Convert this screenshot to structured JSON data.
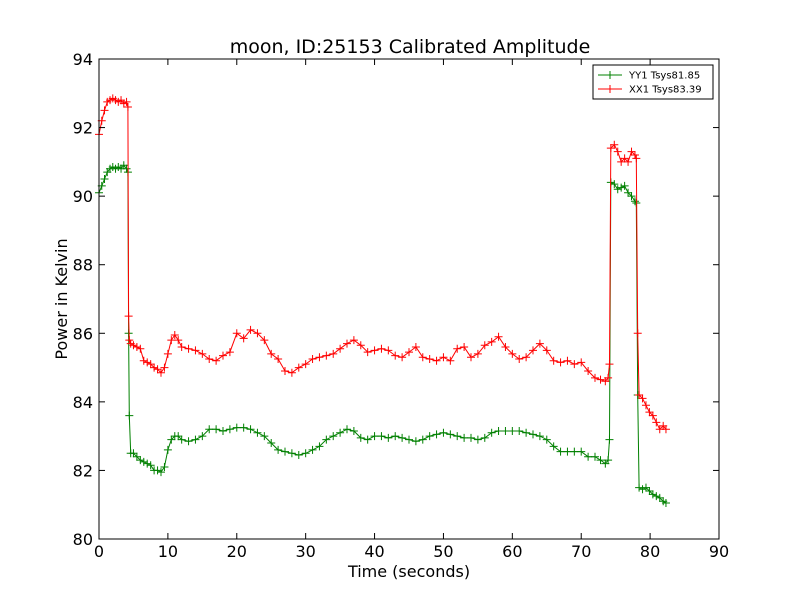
{
  "chart_data": {
    "type": "line",
    "title": "moon, ID:25153 Calibrated Amplitude",
    "xlabel": "Time (seconds)",
    "ylabel": "Power in Kelvin",
    "xlim": [
      0,
      90
    ],
    "ylim": [
      80,
      94
    ],
    "x_ticks": [
      "0",
      "10",
      "20",
      "30",
      "40",
      "50",
      "60",
      "70",
      "80",
      "90"
    ],
    "y_ticks": [
      "80",
      "82",
      "84",
      "86",
      "88",
      "90",
      "92",
      "94"
    ],
    "grid": false,
    "legend": {
      "placement": "top-right"
    },
    "marker": "+",
    "series": [
      {
        "name": "YY1 Tsys81.85",
        "color": "#008000",
        "points": [
          [
            0.0,
            90.1
          ],
          [
            0.4,
            90.3
          ],
          [
            0.8,
            90.5
          ],
          [
            1.2,
            90.7
          ],
          [
            1.6,
            90.8
          ],
          [
            2.0,
            90.85
          ],
          [
            2.4,
            90.8
          ],
          [
            2.8,
            90.85
          ],
          [
            3.2,
            90.8
          ],
          [
            3.6,
            90.9
          ],
          [
            4.0,
            90.8
          ],
          [
            4.2,
            90.7
          ],
          [
            4.3,
            86.0
          ],
          [
            4.4,
            83.6
          ],
          [
            4.6,
            82.5
          ],
          [
            5.0,
            82.5
          ],
          [
            5.5,
            82.4
          ],
          [
            6.0,
            82.3
          ],
          [
            6.5,
            82.25
          ],
          [
            7.0,
            82.2
          ],
          [
            7.5,
            82.15
          ],
          [
            8.0,
            82.0
          ],
          [
            8.5,
            82.0
          ],
          [
            9.0,
            81.95
          ],
          [
            9.5,
            82.1
          ],
          [
            10.0,
            82.6
          ],
          [
            10.5,
            82.9
          ],
          [
            11.0,
            83.0
          ],
          [
            11.5,
            83.0
          ],
          [
            12.0,
            82.9
          ],
          [
            13.0,
            82.85
          ],
          [
            14.0,
            82.9
          ],
          [
            15.0,
            83.0
          ],
          [
            16.0,
            83.2
          ],
          [
            17.0,
            83.2
          ],
          [
            18.0,
            83.15
          ],
          [
            19.0,
            83.2
          ],
          [
            20.0,
            83.25
          ],
          [
            21.0,
            83.25
          ],
          [
            22.0,
            83.2
          ],
          [
            23.0,
            83.1
          ],
          [
            24.0,
            83.0
          ],
          [
            25.0,
            82.8
          ],
          [
            26.0,
            82.6
          ],
          [
            27.0,
            82.55
          ],
          [
            28.0,
            82.5
          ],
          [
            29.0,
            82.45
          ],
          [
            30.0,
            82.5
          ],
          [
            31.0,
            82.6
          ],
          [
            32.0,
            82.7
          ],
          [
            33.0,
            82.9
          ],
          [
            34.0,
            83.0
          ],
          [
            35.0,
            83.1
          ],
          [
            36.0,
            83.2
          ],
          [
            37.0,
            83.15
          ],
          [
            38.0,
            82.95
          ],
          [
            39.0,
            82.9
          ],
          [
            40.0,
            83.0
          ],
          [
            41.0,
            83.0
          ],
          [
            42.0,
            82.95
          ],
          [
            43.0,
            83.0
          ],
          [
            44.0,
            82.95
          ],
          [
            45.0,
            82.9
          ],
          [
            46.0,
            82.85
          ],
          [
            47.0,
            82.9
          ],
          [
            48.0,
            83.0
          ],
          [
            49.0,
            83.05
          ],
          [
            50.0,
            83.1
          ],
          [
            51.0,
            83.05
          ],
          [
            52.0,
            83.0
          ],
          [
            53.0,
            82.95
          ],
          [
            54.0,
            82.95
          ],
          [
            55.0,
            82.9
          ],
          [
            56.0,
            82.95
          ],
          [
            57.0,
            83.1
          ],
          [
            58.0,
            83.15
          ],
          [
            59.0,
            83.15
          ],
          [
            60.0,
            83.15
          ],
          [
            61.0,
            83.15
          ],
          [
            62.0,
            83.1
          ],
          [
            63.0,
            83.05
          ],
          [
            64.0,
            83.0
          ],
          [
            65.0,
            82.9
          ],
          [
            66.0,
            82.7
          ],
          [
            67.0,
            82.55
          ],
          [
            68.0,
            82.55
          ],
          [
            69.0,
            82.55
          ],
          [
            70.0,
            82.55
          ],
          [
            71.0,
            82.4
          ],
          [
            72.0,
            82.4
          ],
          [
            72.8,
            82.3
          ],
          [
            73.5,
            82.2
          ],
          [
            73.9,
            82.3
          ],
          [
            74.1,
            82.9
          ],
          [
            74.3,
            90.4
          ],
          [
            74.8,
            90.35
          ],
          [
            75.3,
            90.2
          ],
          [
            75.8,
            90.25
          ],
          [
            76.3,
            90.3
          ],
          [
            76.8,
            90.1
          ],
          [
            77.3,
            90.0
          ],
          [
            77.8,
            89.85
          ],
          [
            78.0,
            89.8
          ],
          [
            78.2,
            84.2
          ],
          [
            78.4,
            81.5
          ],
          [
            78.9,
            81.45
          ],
          [
            79.4,
            81.5
          ],
          [
            79.9,
            81.4
          ],
          [
            80.4,
            81.3
          ],
          [
            80.9,
            81.25
          ],
          [
            81.4,
            81.2
          ],
          [
            81.9,
            81.1
          ],
          [
            82.3,
            81.05
          ]
        ]
      },
      {
        "name": "XX1 Tsys83.39",
        "color": "#ff0000",
        "points": [
          [
            0.0,
            91.8
          ],
          [
            0.4,
            92.2
          ],
          [
            0.8,
            92.5
          ],
          [
            1.2,
            92.75
          ],
          [
            1.6,
            92.8
          ],
          [
            2.0,
            92.85
          ],
          [
            2.4,
            92.8
          ],
          [
            2.8,
            92.75
          ],
          [
            3.2,
            92.8
          ],
          [
            3.6,
            92.7
          ],
          [
            4.0,
            92.75
          ],
          [
            4.2,
            92.6
          ],
          [
            4.3,
            86.5
          ],
          [
            4.4,
            85.8
          ],
          [
            4.6,
            85.7
          ],
          [
            5.0,
            85.65
          ],
          [
            5.5,
            85.6
          ],
          [
            6.0,
            85.55
          ],
          [
            6.5,
            85.2
          ],
          [
            7.0,
            85.15
          ],
          [
            7.5,
            85.1
          ],
          [
            8.0,
            85.0
          ],
          [
            8.5,
            84.95
          ],
          [
            9.0,
            84.85
          ],
          [
            9.5,
            85.0
          ],
          [
            10.0,
            85.4
          ],
          [
            10.5,
            85.8
          ],
          [
            11.0,
            85.95
          ],
          [
            11.5,
            85.8
          ],
          [
            12.0,
            85.6
          ],
          [
            13.0,
            85.55
          ],
          [
            14.0,
            85.5
          ],
          [
            15.0,
            85.4
          ],
          [
            16.0,
            85.25
          ],
          [
            17.0,
            85.2
          ],
          [
            18.0,
            85.35
          ],
          [
            19.0,
            85.45
          ],
          [
            20.0,
            86.0
          ],
          [
            21.0,
            85.85
          ],
          [
            22.0,
            86.1
          ],
          [
            23.0,
            86.0
          ],
          [
            24.0,
            85.8
          ],
          [
            25.0,
            85.4
          ],
          [
            26.0,
            85.25
          ],
          [
            27.0,
            84.9
          ],
          [
            28.0,
            84.85
          ],
          [
            29.0,
            85.0
          ],
          [
            30.0,
            85.1
          ],
          [
            31.0,
            85.25
          ],
          [
            32.0,
            85.3
          ],
          [
            33.0,
            85.35
          ],
          [
            34.0,
            85.4
          ],
          [
            35.0,
            85.55
          ],
          [
            36.0,
            85.7
          ],
          [
            37.0,
            85.8
          ],
          [
            38.0,
            85.65
          ],
          [
            39.0,
            85.45
          ],
          [
            40.0,
            85.5
          ],
          [
            41.0,
            85.55
          ],
          [
            42.0,
            85.5
          ],
          [
            43.0,
            85.35
          ],
          [
            44.0,
            85.3
          ],
          [
            45.0,
            85.45
          ],
          [
            46.0,
            85.6
          ],
          [
            47.0,
            85.3
          ],
          [
            48.0,
            85.25
          ],
          [
            49.0,
            85.2
          ],
          [
            50.0,
            85.3
          ],
          [
            51.0,
            85.2
          ],
          [
            52.0,
            85.55
          ],
          [
            53.0,
            85.6
          ],
          [
            54.0,
            85.3
          ],
          [
            55.0,
            85.4
          ],
          [
            56.0,
            85.65
          ],
          [
            57.0,
            85.75
          ],
          [
            58.0,
            85.9
          ],
          [
            59.0,
            85.6
          ],
          [
            60.0,
            85.4
          ],
          [
            61.0,
            85.25
          ],
          [
            62.0,
            85.3
          ],
          [
            63.0,
            85.5
          ],
          [
            64.0,
            85.7
          ],
          [
            65.0,
            85.5
          ],
          [
            66.0,
            85.2
          ],
          [
            67.0,
            85.15
          ],
          [
            68.0,
            85.2
          ],
          [
            69.0,
            85.1
          ],
          [
            70.0,
            85.15
          ],
          [
            71.0,
            84.9
          ],
          [
            72.0,
            84.7
          ],
          [
            72.8,
            84.65
          ],
          [
            73.5,
            84.6
          ],
          [
            73.9,
            84.7
          ],
          [
            74.1,
            85.1
          ],
          [
            74.3,
            91.4
          ],
          [
            74.8,
            91.5
          ],
          [
            75.3,
            91.3
          ],
          [
            75.8,
            91.0
          ],
          [
            76.3,
            91.1
          ],
          [
            76.8,
            91.0
          ],
          [
            77.3,
            91.3
          ],
          [
            77.8,
            91.2
          ],
          [
            78.0,
            91.1
          ],
          [
            78.2,
            86.0
          ],
          [
            78.4,
            84.2
          ],
          [
            78.9,
            84.1
          ],
          [
            79.4,
            83.9
          ],
          [
            79.9,
            83.7
          ],
          [
            80.4,
            83.6
          ],
          [
            80.9,
            83.4
          ],
          [
            81.4,
            83.2
          ],
          [
            81.9,
            83.3
          ],
          [
            82.3,
            83.2
          ]
        ]
      }
    ]
  }
}
